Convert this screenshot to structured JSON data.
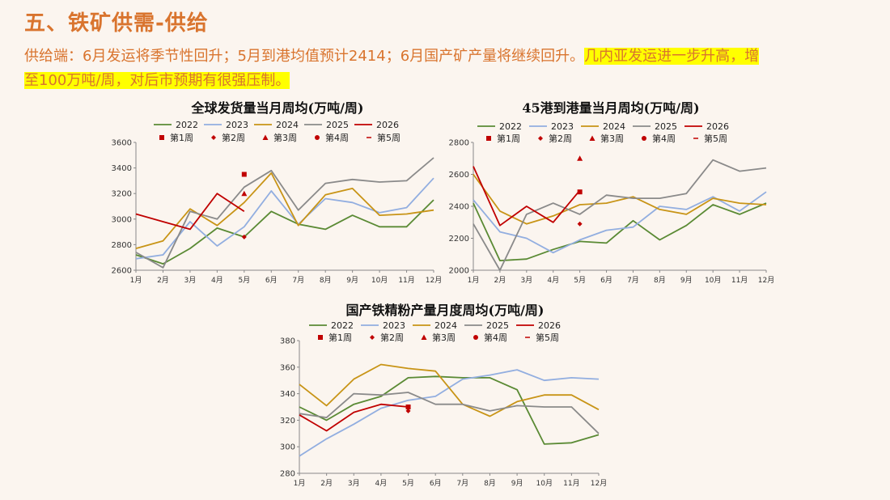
{
  "page": {
    "title": "五、铁矿供需-供给",
    "summary_plain": "供给端：6月发运将季节性回升；5月到港均值预计2414；6月国产矿产量将继续回升。",
    "summary_highlight1": "几内亚发运进一步升高，增",
    "summary_highlight2": "至100万吨/周，对后市预期有很强压制。"
  },
  "colors": {
    "2022": "#5a8a34",
    "2023": "#92aee0",
    "2024": "#c89416",
    "2025": "#8a8a8a",
    "2026": "#c00000",
    "marker": "#c00000",
    "accent": "#d9742e",
    "highlight": "#ffff00"
  },
  "chart_data": [
    {
      "type": "line",
      "title": "全球发货量当月周均(万吨/周)",
      "categories": [
        "1月",
        "2月",
        "3月",
        "4月",
        "5月",
        "6月",
        "7月",
        "8月",
        "9月",
        "10月",
        "11月",
        "12月"
      ],
      "ylim": [
        2600,
        3600
      ],
      "yticks": [
        2600,
        2800,
        3000,
        3200,
        3400,
        3600
      ],
      "series": [
        {
          "name": "2022",
          "values": [
            2720,
            2650,
            2770,
            2930,
            2860,
            3060,
            2960,
            2920,
            3030,
            2940,
            2940,
            3150
          ]
        },
        {
          "name": "2023",
          "values": [
            2690,
            2720,
            2980,
            2790,
            2940,
            3220,
            2960,
            3160,
            3130,
            3050,
            3090,
            3320
          ]
        },
        {
          "name": "2024",
          "values": [
            2770,
            2830,
            3080,
            2950,
            3130,
            3360,
            2950,
            3190,
            3240,
            3030,
            3040,
            3070
          ]
        },
        {
          "name": "2025",
          "values": [
            2740,
            2620,
            3060,
            3000,
            3250,
            3380,
            3070,
            3280,
            3310,
            3290,
            3300,
            3480
          ]
        },
        {
          "name": "2026",
          "values": [
            3040,
            2980,
            2920,
            3200,
            3060,
            null,
            null,
            null,
            null,
            null,
            null,
            null
          ]
        }
      ],
      "markers": [
        {
          "name": "第1周",
          "shape": "square",
          "x": "5月",
          "y": 3350
        },
        {
          "name": "第2周",
          "shape": "diamond",
          "x": "5月",
          "y": 2860
        },
        {
          "name": "第3周",
          "shape": "triangle",
          "x": "5月",
          "y": 3200
        },
        {
          "name": "第4周",
          "shape": "circle",
          "x": "5月",
          "y": null
        },
        {
          "name": "第5周",
          "shape": "dash",
          "x": "5月",
          "y": null
        }
      ]
    },
    {
      "type": "line",
      "title": "45港到港量当月周均(万吨/周)",
      "categories": [
        "1月",
        "2月",
        "3月",
        "4月",
        "5月",
        "6月",
        "7月",
        "8月",
        "9月",
        "10月",
        "11月",
        "12月"
      ],
      "ylim": [
        2000,
        2800
      ],
      "yticks": [
        2000,
        2200,
        2400,
        2600,
        2800
      ],
      "series": [
        {
          "name": "2022",
          "values": [
            2420,
            2060,
            2070,
            2130,
            2180,
            2170,
            2310,
            2190,
            2280,
            2410,
            2350,
            2420
          ]
        },
        {
          "name": "2023",
          "values": [
            2440,
            2240,
            2200,
            2110,
            2190,
            2250,
            2270,
            2400,
            2380,
            2460,
            2370,
            2490
          ]
        },
        {
          "name": "2024",
          "values": [
            2600,
            2370,
            2290,
            2340,
            2410,
            2420,
            2460,
            2380,
            2350,
            2450,
            2420,
            2410
          ]
        },
        {
          "name": "2025",
          "values": [
            2290,
            2000,
            2350,
            2420,
            2350,
            2470,
            2450,
            2450,
            2480,
            2690,
            2620,
            2640
          ]
        },
        {
          "name": "2026",
          "values": [
            2650,
            2280,
            2400,
            2300,
            2500,
            null,
            null,
            null,
            null,
            null,
            null,
            null
          ]
        }
      ],
      "markers": [
        {
          "name": "第1周",
          "shape": "square",
          "x": "5月",
          "y": 2490
        },
        {
          "name": "第2周",
          "shape": "diamond",
          "x": "5月",
          "y": 2290
        },
        {
          "name": "第3周",
          "shape": "triangle",
          "x": "5月",
          "y": 2700
        },
        {
          "name": "第4周",
          "shape": "circle",
          "x": "5月",
          "y": null
        },
        {
          "name": "第5周",
          "shape": "dash",
          "x": "5月",
          "y": null
        }
      ]
    },
    {
      "type": "line",
      "title": "国产铁精粉产量月度周均(万吨/周)",
      "categories": [
        "1月",
        "2月",
        "3月",
        "4月",
        "5月",
        "6月",
        "7月",
        "8月",
        "9月",
        "10月",
        "11月",
        "12月"
      ],
      "ylim": [
        280,
        380
      ],
      "yticks": [
        280,
        300,
        320,
        340,
        360,
        380
      ],
      "series": [
        {
          "name": "2022",
          "values": [
            330,
            320,
            332,
            338,
            352,
            353,
            352,
            352,
            343,
            302,
            303,
            309
          ]
        },
        {
          "name": "2023",
          "values": [
            293,
            306,
            317,
            329,
            335,
            338,
            351,
            354,
            358,
            350,
            352,
            351
          ]
        },
        {
          "name": "2024",
          "values": [
            347,
            331,
            351,
            362,
            359,
            357,
            332,
            323,
            334,
            339,
            339,
            328
          ]
        },
        {
          "name": "2025",
          "values": [
            325,
            322,
            340,
            339,
            341,
            332,
            332,
            327,
            331,
            330,
            330,
            310
          ]
        },
        {
          "name": "2026",
          "values": [
            324,
            312,
            326,
            332,
            330,
            null,
            null,
            null,
            null,
            null,
            null,
            null
          ]
        }
      ],
      "markers": [
        {
          "name": "第1周",
          "shape": "square",
          "x": "5月",
          "y": 330
        },
        {
          "name": "第2周",
          "shape": "diamond",
          "x": "5月",
          "y": 327
        },
        {
          "name": "第3周",
          "shape": "triangle",
          "x": "5月",
          "y": null
        },
        {
          "name": "第4周",
          "shape": "circle",
          "x": "5月",
          "y": null
        },
        {
          "name": "第5周",
          "shape": "dash",
          "x": "5月",
          "y": null
        }
      ]
    }
  ]
}
